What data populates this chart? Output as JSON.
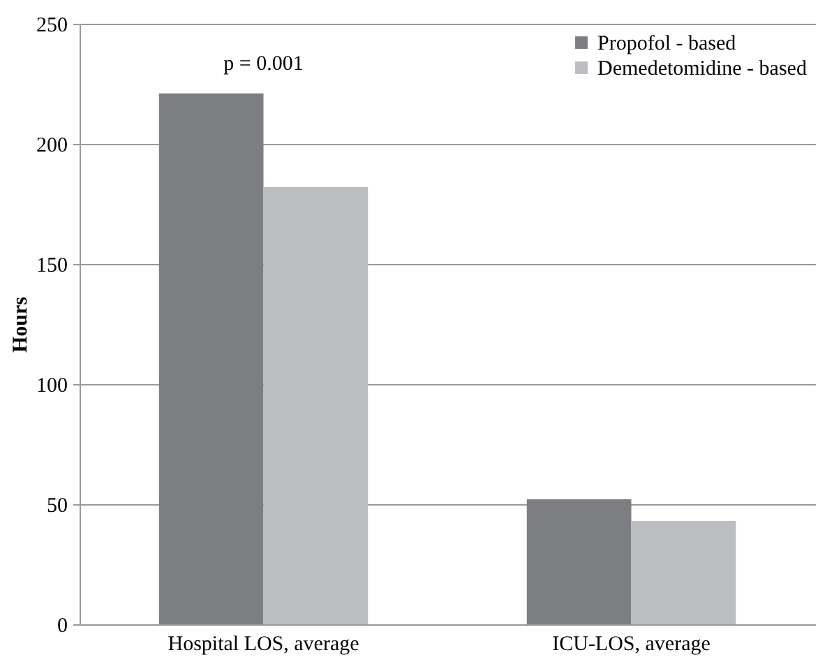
{
  "chart_data": {
    "type": "bar",
    "ylabel": "Hours",
    "categories": [
      "Hospital LOS, average",
      "ICU-LOS, average"
    ],
    "series": [
      {
        "name": "Propofol - based",
        "color": "#7d7e82",
        "values": [
          221,
          52
        ]
      },
      {
        "name": "Demedetomidine - based",
        "color": "#bcbdc1",
        "values": [
          182,
          43
        ]
      }
    ],
    "ylim": [
      0,
      250
    ],
    "yticks": [
      0,
      50,
      100,
      150,
      200,
      250
    ],
    "grid": "y",
    "legend": "top right",
    "annotations": [
      "p = 0.001"
    ]
  }
}
